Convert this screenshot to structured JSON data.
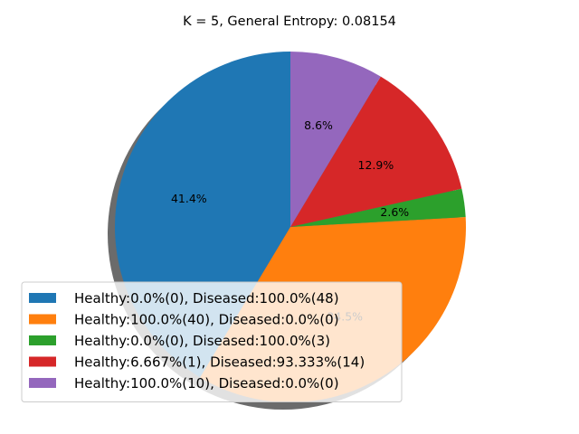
{
  "chart_data": {
    "type": "pie",
    "title": "K = 5, General Entropy: 0.08154",
    "slices": [
      {
        "label": "Healthy:0.0%(0), Diseased:100.0%(48)",
        "pct_label": "41.4%",
        "value": 41.4,
        "color": "#1f77b4"
      },
      {
        "label": "Healthy:100.0%(40), Diseased:0.0%(0)",
        "pct_label": "34.5%",
        "value": 34.5,
        "color": "#ff7f0e"
      },
      {
        "label": "Healthy:0.0%(0), Diseased:100.0%(3)",
        "pct_label": "2.6%",
        "value": 2.6,
        "color": "#2ca02c"
      },
      {
        "label": "Healthy:6.667%(1), Diseased:93.333%(14)",
        "pct_label": "12.9%",
        "value": 12.9,
        "color": "#d62728"
      },
      {
        "label": "Healthy:100.0%(10), Diseased:0.0%(0)",
        "pct_label": "8.6%",
        "value": 8.6,
        "color": "#9467bd"
      }
    ],
    "start_angle_deg": 90,
    "shadow": true,
    "legend": "lower-left"
  }
}
